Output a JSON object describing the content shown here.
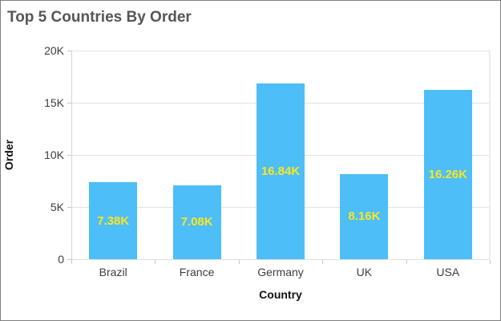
{
  "chart_data": {
    "type": "bar",
    "title": "Top 5 Countries By Order",
    "xlabel": "Country",
    "ylabel": "Order",
    "categories": [
      "Brazil",
      "France",
      "Germany",
      "UK",
      "USA"
    ],
    "values": [
      7380,
      7080,
      16840,
      8160,
      16260
    ],
    "value_labels": [
      "7.38K",
      "7.08K",
      "16.84K",
      "8.16K",
      "16.26K"
    ],
    "ylim": [
      0,
      20000
    ],
    "ytick_interval": 5000,
    "yticks": [
      {
        "value": 0,
        "label": "0"
      },
      {
        "value": 5000,
        "label": "5K"
      },
      {
        "value": 10000,
        "label": "10K"
      },
      {
        "value": 15000,
        "label": "15K"
      },
      {
        "value": 20000,
        "label": "20K"
      }
    ],
    "grid": "horizontal",
    "legend": "none",
    "colors": {
      "bar": "#4dbef7",
      "value_label": "#fbe71f",
      "title": "#565656",
      "axis_text": "#3d3d3d",
      "axis_title_text": "#111111",
      "gridline": "#e2e2e2",
      "widget_border": "#7f7f7f"
    }
  }
}
